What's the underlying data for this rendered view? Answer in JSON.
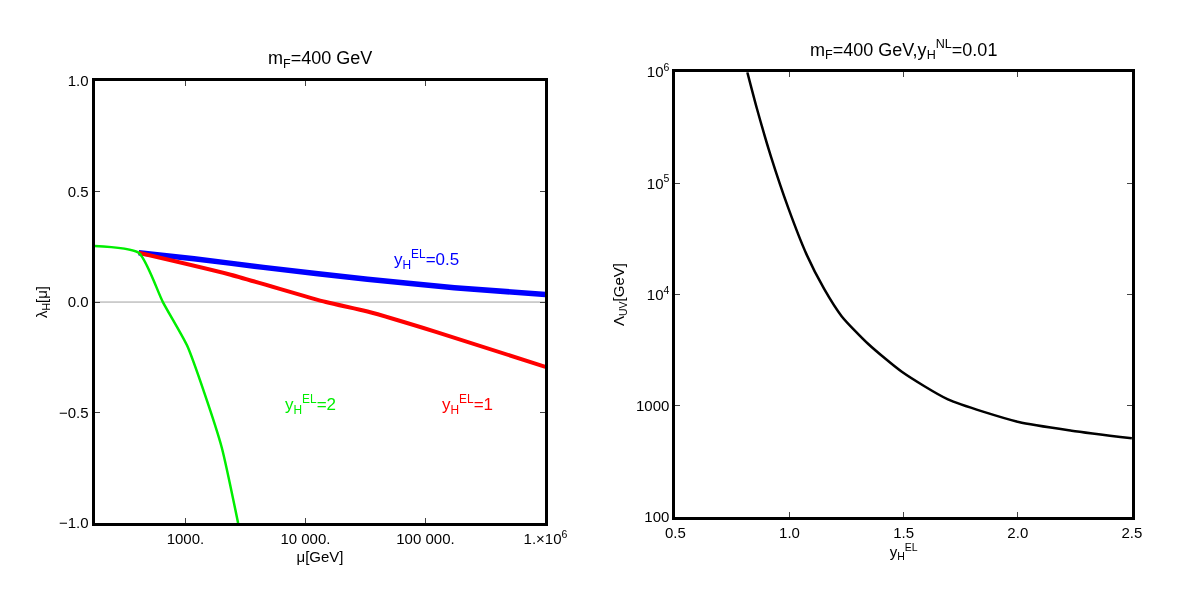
{
  "chart_data": [
    {
      "type": "line",
      "title": "m$_{F}$=400 GeV",
      "xlabel": "μ[GeV]",
      "ylabel": "λ$_{H}$[μ]",
      "log": "x",
      "grid": false,
      "legend": false,
      "marker": "none",
      "line_style": "solid",
      "xlim": [
        175,
        1000000
      ],
      "xticks": [
        {
          "value": 1000,
          "label": "1000."
        },
        {
          "value": 10000,
          "label": "10 000."
        },
        {
          "value": 100000,
          "label": "100 000."
        },
        {
          "value": 1000000,
          "label": "1.×10$^{6}$"
        }
      ],
      "ylim": [
        -1.0,
        1.0
      ],
      "yticks": [
        {
          "value": -1.0,
          "label": "−1.0"
        },
        {
          "value": -0.5,
          "label": "−0.5"
        },
        {
          "value": 0.0,
          "label": "0.0"
        },
        {
          "value": 0.5,
          "label": "0.5"
        },
        {
          "value": 1.0,
          "label": "1.0"
        }
      ],
      "ref_lines": [
        {
          "axis": "y",
          "value": 0,
          "color": "#a0a0a0"
        }
      ],
      "series": [
        {
          "name": "y$_{H}$$^{EL}$=0.5",
          "color": "#0000ff",
          "x": [
            408,
            1181,
            4470,
            32900,
            174000,
            1000000
          ],
          "values": [
            0.223,
            0.196,
            0.157,
            0.103,
            0.065,
            0.034
          ]
        },
        {
          "name": "y$_{H}$$^{EL}$=1",
          "color": "#ff0000",
          "x": [
            408,
            2296,
            14800,
            32900,
            124000,
            1000000
          ],
          "values": [
            0.223,
            0.126,
            0.0,
            -0.043,
            -0.136,
            -0.293
          ]
        },
        {
          "name": "y$_{H}$$^{EL}$=2",
          "color": "#00ee00",
          "x": [
            175,
            408,
            649,
            1033,
            1442,
            2010,
            2748
          ],
          "values": [
            0.254,
            0.223,
            0.0,
            -0.197,
            -0.413,
            -0.659,
            -1.0
          ]
        }
      ]
    },
    {
      "type": "line",
      "title": "m$_{F}$=400 GeV,y$_{H}$$^{NL}$=0.01",
      "xlabel": "y$_{H}$$^{EL}$",
      "ylabel": "Λ$_{UV}$[GeV]",
      "log": "y",
      "grid": false,
      "legend": false,
      "marker": "none",
      "line_style": "solid",
      "xlim": [
        0.5,
        2.5
      ],
      "xticks": [
        {
          "value": 0.5,
          "label": "0.5"
        },
        {
          "value": 1.0,
          "label": "1.0"
        },
        {
          "value": 1.5,
          "label": "1.5"
        },
        {
          "value": 2.0,
          "label": "2.0"
        },
        {
          "value": 2.5,
          "label": "2.5"
        }
      ],
      "ylim": [
        100,
        1000000
      ],
      "yticks": [
        100,
        1000,
        {
          "value": 10000,
          "label": "10$^{4}$"
        },
        {
          "value": 100000,
          "label": "10$^{5}$"
        },
        {
          "value": 1000000,
          "label": "10$^{6}$"
        }
      ],
      "series": [
        {
          "color": "#000000",
          "x": [
            0.815,
            0.857,
            0.919,
            0.996,
            1.074,
            1.151,
            1.229,
            1.345,
            1.492,
            1.694,
            2.004,
            2.236,
            2.5
          ],
          "values": [
            1000000,
            471000,
            173000,
            58900,
            23100,
            11300,
            6360,
            3590,
            2020,
            1140,
            714,
            597,
            509
          ]
        }
      ]
    }
  ]
}
